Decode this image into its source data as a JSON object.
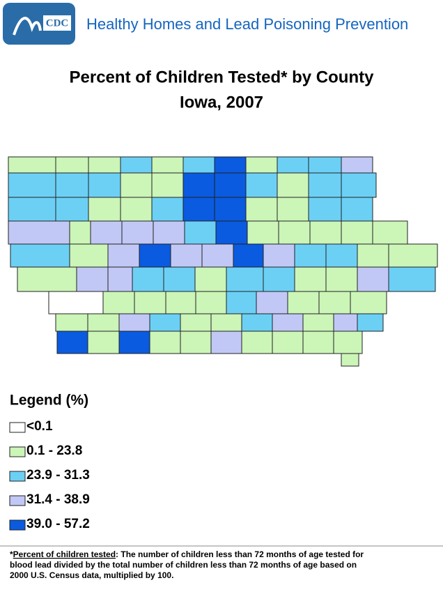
{
  "header": {
    "logo_text": "CDC",
    "title": "Healthy Homes and Lead Poisoning Prevention"
  },
  "map": {
    "title_lines": [
      "Percent of Children Tested* by County",
      "Iowa, 2007"
    ]
  },
  "legend": {
    "title": "Legend (%)",
    "items": [
      {
        "label": "<0.1",
        "color": "#ffffff"
      },
      {
        "label": "0.1 - 23.8",
        "color": "#ccf5b8"
      },
      {
        "label": "23.9 - 31.3",
        "color": "#6cd0f5"
      },
      {
        "label": "31.4 - 38.9",
        "color": "#c2c8f5"
      },
      {
        "label": "39.0 - 57.2",
        "color": "#0a5be0"
      }
    ]
  },
  "footnote": {
    "prefix": "*",
    "term": "Percent of children tested",
    "lines": [
      ": The number of children less than 72 months of age tested for",
      "blood lead divided by the total number of children less than 72 months of age based on",
      "2000 U.S. Census data, multiplied by 100."
    ]
  }
}
